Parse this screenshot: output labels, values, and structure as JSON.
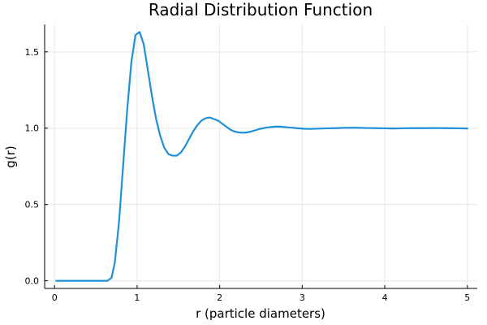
{
  "chart_data": {
    "type": "line",
    "title": "Radial Distribution Function",
    "xlabel": "r (particle diameters)",
    "ylabel": "g(r)",
    "xlim": [
      -0.12,
      5.12
    ],
    "ylim": [
      -0.05,
      1.68
    ],
    "xticks": [
      0,
      1,
      2,
      3,
      4,
      5
    ],
    "xtick_labels": [
      "0",
      "1",
      "2",
      "3",
      "4",
      "5"
    ],
    "yticks": [
      0,
      0.5,
      1.0,
      1.5
    ],
    "ytick_labels": [
      "0.0",
      "0.5",
      "1.0",
      "1.5"
    ],
    "grid": true,
    "legend": "none",
    "series": [
      {
        "color": "#1f8fd6",
        "x": [
          0.02,
          0.1,
          0.2,
          0.3,
          0.4,
          0.5,
          0.6,
          0.64,
          0.69,
          0.73,
          0.78,
          0.83,
          0.88,
          0.93,
          0.98,
          1.03,
          1.08,
          1.13,
          1.18,
          1.23,
          1.28,
          1.33,
          1.38,
          1.43,
          1.48,
          1.53,
          1.58,
          1.63,
          1.68,
          1.73,
          1.78,
          1.83,
          1.88,
          1.93,
          1.98,
          2.03,
          2.08,
          2.13,
          2.18,
          2.23,
          2.28,
          2.33,
          2.38,
          2.43,
          2.48,
          2.53,
          2.58,
          2.63,
          2.68,
          2.73,
          2.78,
          2.83,
          2.88,
          2.93,
          2.98,
          3.03,
          3.1,
          3.2,
          3.3,
          3.4,
          3.5,
          3.6,
          3.7,
          3.8,
          3.9,
          4.0,
          4.1,
          4.2,
          4.3,
          4.4,
          4.5,
          4.6,
          4.7,
          4.8,
          4.9,
          5.0
        ],
        "y": [
          0,
          0,
          0,
          0,
          0,
          0,
          0,
          0.0,
          0.02,
          0.12,
          0.38,
          0.75,
          1.12,
          1.43,
          1.61,
          1.63,
          1.55,
          1.38,
          1.21,
          1.06,
          0.95,
          0.87,
          0.83,
          0.82,
          0.82,
          0.84,
          0.88,
          0.93,
          0.98,
          1.02,
          1.05,
          1.065,
          1.07,
          1.06,
          1.05,
          1.03,
          1.01,
          0.99,
          0.978,
          0.972,
          0.97,
          0.972,
          0.978,
          0.986,
          0.994,
          1.0,
          1.005,
          1.008,
          1.01,
          1.01,
          1.008,
          1.005,
          1.003,
          1.0,
          0.998,
          0.996,
          0.995,
          0.997,
          0.999,
          1.0,
          1.002,
          1.003,
          1.002,
          1.001,
          1.0,
          0.999,
          0.998,
          0.999,
          1.0,
          1.0,
          1.0,
          1.001,
          1.0,
          1.0,
          0.999,
          0.998
        ]
      }
    ]
  }
}
